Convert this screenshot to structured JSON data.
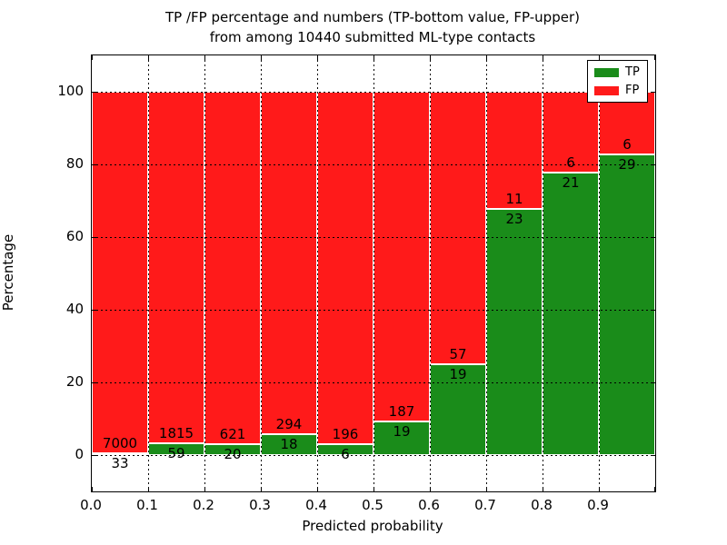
{
  "title": {
    "line1": "TP /FP percentage and numbers (TP-bottom value, FP-upper)",
    "line2": "from among 10440 submitted ML-type contacts"
  },
  "axes": {
    "xlabel": "Predicted probability",
    "ylabel": "Percentage",
    "x_tick_labels": [
      "0.0",
      "0.1",
      "0.2",
      "0.3",
      "0.4",
      "0.5",
      "0.6",
      "0.7",
      "0.8",
      "0.9"
    ],
    "y_tick_labels": [
      "0",
      "20",
      "40",
      "60",
      "80",
      "100"
    ],
    "y_tick_values": [
      0,
      20,
      40,
      60,
      80,
      100
    ]
  },
  "legend": {
    "items": [
      {
        "label": "TP",
        "color": "#1a8c1a"
      },
      {
        "label": "FP",
        "color": "#ff1a1a"
      }
    ]
  },
  "chart_data": {
    "type": "bar",
    "stacked": true,
    "normalized_to_percent": true,
    "title": "TP /FP percentage and numbers (TP-bottom value, FP-upper) from among 10440 submitted ML-type contacts",
    "xlabel": "Predicted probability",
    "ylabel": "Percentage",
    "bin_starts": [
      0.0,
      0.1,
      0.2,
      0.3,
      0.4,
      0.5,
      0.6,
      0.7,
      0.8,
      0.9
    ],
    "bin_width": 0.1,
    "series": [
      {
        "name": "TP",
        "color": "#1a8c1a",
        "counts": [
          33,
          59,
          20,
          18,
          6,
          19,
          19,
          23,
          21,
          29
        ]
      },
      {
        "name": "FP",
        "color": "#ff1a1a",
        "counts": [
          7000,
          1815,
          621,
          294,
          196,
          187,
          57,
          11,
          6,
          6
        ]
      }
    ],
    "total_contacts": 10440,
    "xlim": [
      0.0,
      1.0
    ],
    "ylim": [
      -10,
      110
    ],
    "grid": true,
    "grid_style": "dotted",
    "legend_position": "upper right",
    "tp_percent_by_bin": [
      0.47,
      3.15,
      3.12,
      5.77,
      2.97,
      9.22,
      25.0,
      67.65,
      77.78,
      82.86
    ]
  }
}
